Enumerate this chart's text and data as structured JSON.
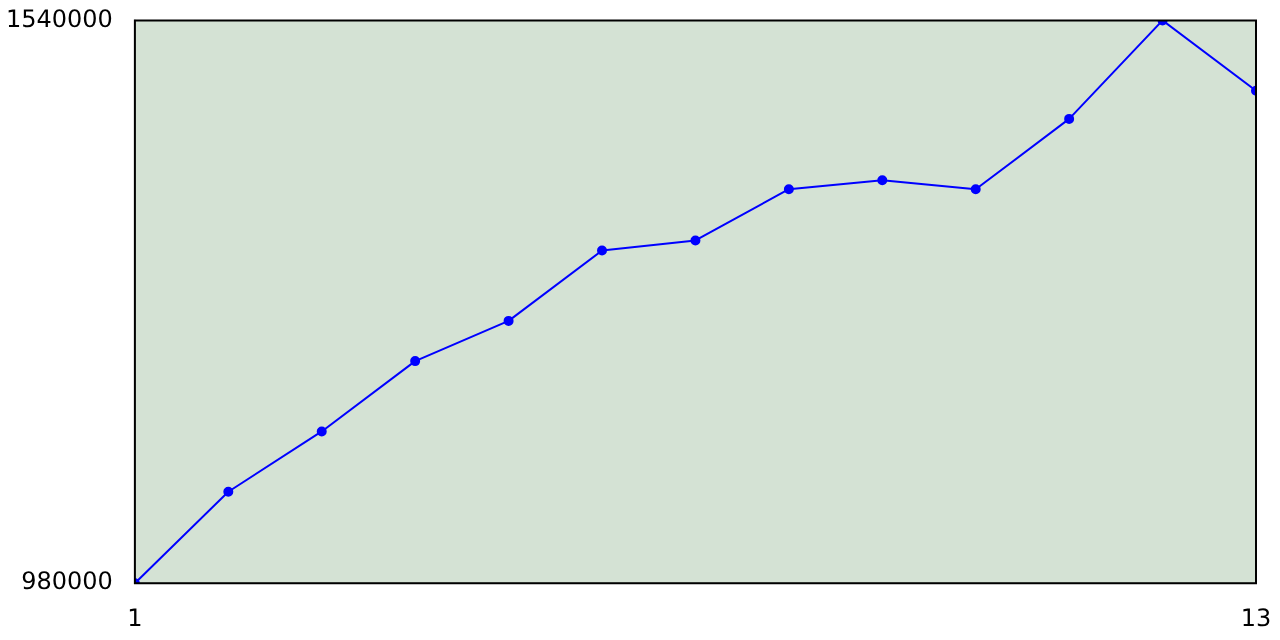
{
  "chart_data": {
    "type": "line",
    "x": [
      1,
      2,
      3,
      4,
      5,
      6,
      7,
      8,
      9,
      10,
      11,
      12,
      13
    ],
    "series": [
      {
        "color": "#0000ff",
        "values": [
          980000,
          1071000,
          1131000,
          1201000,
          1241000,
          1311000,
          1321000,
          1372000,
          1381000,
          1372000,
          1442000,
          1540000,
          1470000
        ]
      }
    ],
    "xlim": [
      1,
      13
    ],
    "xticks": [
      1,
      13
    ],
    "ylim": [
      980000,
      1540000
    ],
    "yticks": [
      980000,
      1540000
    ],
    "grid": false,
    "legend": false,
    "marker": "circle",
    "line_style": "solid"
  }
}
